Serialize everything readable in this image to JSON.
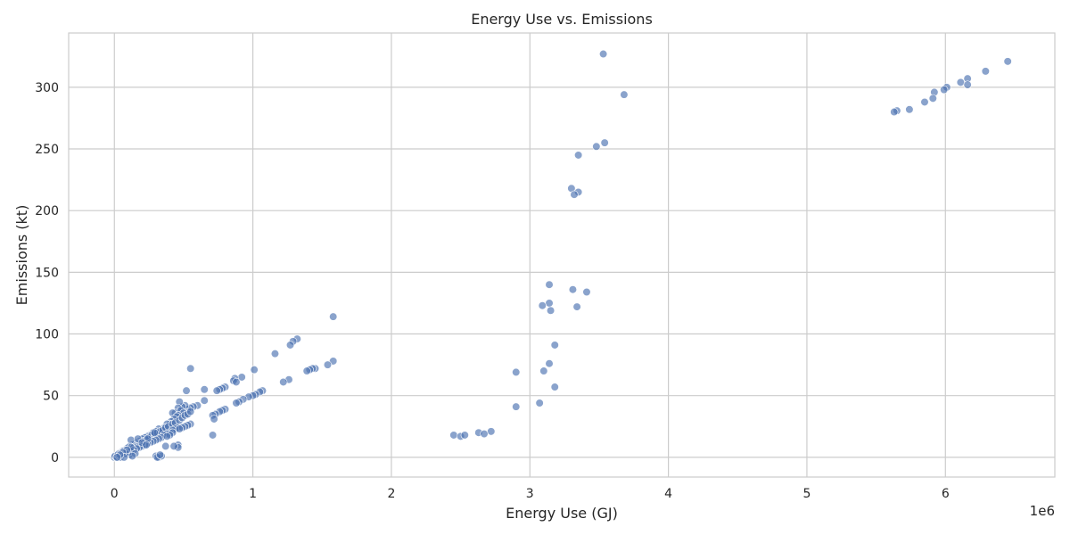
{
  "chart_data": {
    "type": "scatter",
    "title": "Energy Use vs. Emissions",
    "xlabel": "Energy Use (GJ)",
    "ylabel": "Emissions (kt)",
    "x_offset_label": "1e6",
    "x_scale_factor": 1000000,
    "xlim": [
      -330000,
      6790000
    ],
    "ylim": [
      -16,
      344
    ],
    "xticks": [
      0,
      1000000,
      2000000,
      3000000,
      4000000,
      5000000,
      6000000
    ],
    "xtick_labels": [
      "0",
      "1",
      "2",
      "3",
      "4",
      "5",
      "6"
    ],
    "yticks": [
      0,
      50,
      100,
      150,
      200,
      250,
      300
    ],
    "ytick_labels": [
      "0",
      "50",
      "100",
      "150",
      "200",
      "250",
      "300"
    ],
    "grid": true,
    "marker_color": "#4c72b0",
    "series": [
      {
        "points": [
          [
            3530000,
            327
          ],
          [
            6450000,
            321
          ],
          [
            6290000,
            313
          ],
          [
            6160000,
            307
          ],
          [
            6110000,
            304
          ],
          [
            6160000,
            302
          ],
          [
            6010000,
            300
          ],
          [
            5990000,
            298
          ],
          [
            5920000,
            296
          ],
          [
            5910000,
            291
          ],
          [
            5850000,
            288
          ],
          [
            5740000,
            282
          ],
          [
            5650000,
            281
          ],
          [
            5630000,
            280
          ],
          [
            3680000,
            294
          ],
          [
            3540000,
            255
          ],
          [
            3480000,
            252
          ],
          [
            3350000,
            245
          ],
          [
            3300000,
            218
          ],
          [
            3350000,
            215
          ],
          [
            3320000,
            213
          ],
          [
            3140000,
            140
          ],
          [
            3310000,
            136
          ],
          [
            3410000,
            134
          ],
          [
            3140000,
            125
          ],
          [
            3090000,
            123
          ],
          [
            3340000,
            122
          ],
          [
            3150000,
            119
          ],
          [
            3180000,
            91
          ],
          [
            3140000,
            76
          ],
          [
            3100000,
            70
          ],
          [
            2900000,
            69
          ],
          [
            3180000,
            57
          ],
          [
            3070000,
            44
          ],
          [
            2900000,
            41
          ],
          [
            2720000,
            21
          ],
          [
            2630000,
            20
          ],
          [
            2670000,
            19
          ],
          [
            2450000,
            18
          ],
          [
            2500000,
            17
          ],
          [
            2530000,
            18
          ],
          [
            1580000,
            114
          ],
          [
            1160000,
            84
          ],
          [
            1320000,
            96
          ],
          [
            1290000,
            94
          ],
          [
            1270000,
            91
          ],
          [
            1580000,
            78
          ],
          [
            1540000,
            75
          ],
          [
            1450000,
            72
          ],
          [
            1430000,
            72
          ],
          [
            1410000,
            71
          ],
          [
            1390000,
            70
          ],
          [
            1010000,
            71
          ],
          [
            550000,
            72
          ],
          [
            1260000,
            63
          ],
          [
            1220000,
            61
          ],
          [
            920000,
            65
          ],
          [
            870000,
            64
          ],
          [
            860000,
            62
          ],
          [
            880000,
            61
          ],
          [
            800000,
            57
          ],
          [
            780000,
            56
          ],
          [
            760000,
            55
          ],
          [
            740000,
            54
          ],
          [
            650000,
            55
          ],
          [
            520000,
            54
          ],
          [
            1070000,
            54
          ],
          [
            1050000,
            53
          ],
          [
            1020000,
            51
          ],
          [
            1000000,
            50
          ],
          [
            970000,
            49
          ],
          [
            930000,
            47
          ],
          [
            900000,
            45
          ],
          [
            880000,
            44
          ],
          [
            800000,
            39
          ],
          [
            780000,
            38
          ],
          [
            760000,
            37
          ],
          [
            730000,
            35
          ],
          [
            710000,
            34
          ],
          [
            720000,
            31
          ],
          [
            710000,
            18
          ],
          [
            650000,
            46
          ],
          [
            600000,
            42
          ],
          [
            570000,
            41
          ],
          [
            550000,
            40
          ],
          [
            530000,
            39
          ],
          [
            510000,
            42
          ],
          [
            490000,
            41
          ],
          [
            470000,
            45
          ],
          [
            460000,
            40
          ],
          [
            440000,
            36
          ],
          [
            420000,
            36
          ],
          [
            480000,
            38
          ],
          [
            500000,
            36
          ],
          [
            460000,
            34
          ],
          [
            450000,
            33
          ],
          [
            430000,
            31
          ],
          [
            410000,
            29
          ],
          [
            400000,
            27
          ],
          [
            380000,
            27
          ],
          [
            360000,
            24
          ],
          [
            340000,
            22
          ],
          [
            320000,
            23
          ],
          [
            300000,
            21
          ],
          [
            280000,
            20
          ],
          [
            260000,
            18
          ],
          [
            240000,
            17
          ],
          [
            220000,
            16
          ],
          [
            200000,
            15
          ],
          [
            180000,
            13
          ],
          [
            160000,
            12
          ],
          [
            150000,
            11
          ],
          [
            130000,
            10
          ],
          [
            120000,
            14
          ],
          [
            110000,
            9
          ],
          [
            100000,
            8
          ],
          [
            90000,
            7
          ],
          [
            80000,
            6
          ],
          [
            70000,
            5
          ],
          [
            60000,
            5
          ],
          [
            50000,
            4
          ],
          [
            40000,
            3
          ],
          [
            30000,
            3
          ],
          [
            20000,
            2
          ],
          [
            10000,
            1
          ],
          [
            0,
            0
          ],
          [
            5000,
            1
          ],
          [
            15000,
            0
          ],
          [
            25000,
            2
          ],
          [
            35000,
            1
          ],
          [
            45000,
            0
          ],
          [
            60000,
            2
          ],
          [
            75000,
            3
          ],
          [
            95000,
            4
          ],
          [
            110000,
            2
          ],
          [
            125000,
            7
          ],
          [
            140000,
            8
          ],
          [
            170000,
            9
          ],
          [
            190000,
            12
          ],
          [
            210000,
            13
          ],
          [
            230000,
            14
          ],
          [
            250000,
            16
          ],
          [
            270000,
            18
          ],
          [
            290000,
            19
          ],
          [
            310000,
            20
          ],
          [
            330000,
            21
          ],
          [
            350000,
            22
          ],
          [
            370000,
            24
          ],
          [
            390000,
            25
          ],
          [
            420000,
            27
          ],
          [
            440000,
            28
          ],
          [
            470000,
            30
          ],
          [
            490000,
            32
          ],
          [
            510000,
            34
          ],
          [
            530000,
            35
          ],
          [
            550000,
            37
          ],
          [
            460000,
            24
          ],
          [
            440000,
            23
          ],
          [
            420000,
            22
          ],
          [
            400000,
            20
          ],
          [
            380000,
            19
          ],
          [
            360000,
            18
          ],
          [
            340000,
            16
          ],
          [
            320000,
            15
          ],
          [
            300000,
            14
          ],
          [
            280000,
            13
          ],
          [
            260000,
            12
          ],
          [
            240000,
            11
          ],
          [
            220000,
            10
          ],
          [
            200000,
            9
          ],
          [
            180000,
            8
          ],
          [
            160000,
            7
          ],
          [
            140000,
            6
          ],
          [
            120000,
            5
          ],
          [
            100000,
            4
          ],
          [
            80000,
            3
          ],
          [
            550000,
            27
          ],
          [
            530000,
            26
          ],
          [
            510000,
            25
          ],
          [
            490000,
            24
          ],
          [
            470000,
            23
          ],
          [
            460000,
            10
          ],
          [
            460000,
            8
          ],
          [
            430000,
            9
          ],
          [
            370000,
            9
          ],
          [
            300000,
            1
          ],
          [
            320000,
            0
          ],
          [
            340000,
            1
          ],
          [
            310000,
            0
          ],
          [
            330000,
            2
          ],
          [
            290000,
            20
          ],
          [
            420000,
            20
          ],
          [
            400000,
            18
          ],
          [
            380000,
            17
          ],
          [
            240000,
            15
          ],
          [
            170000,
            15
          ],
          [
            200000,
            12
          ],
          [
            230000,
            10
          ],
          [
            120000,
            8
          ],
          [
            90000,
            6
          ],
          [
            60000,
            4
          ],
          [
            150000,
            3
          ],
          [
            130000,
            1
          ],
          [
            70000,
            0
          ],
          [
            40000,
            2
          ],
          [
            20000,
            0
          ]
        ]
      }
    ]
  }
}
